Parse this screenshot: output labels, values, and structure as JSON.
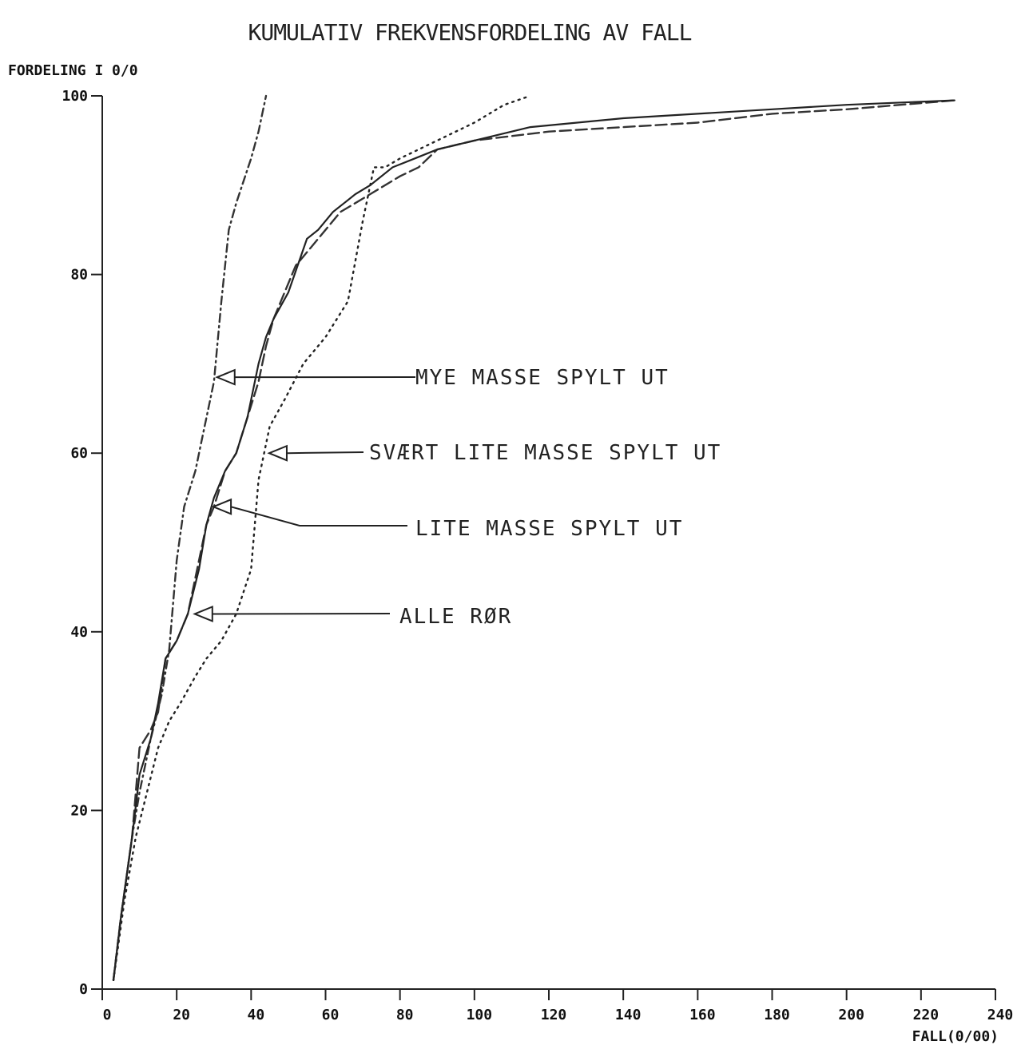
{
  "chart_data": {
    "type": "line",
    "title": "KUMULATIV FREKVENSFORDELING AV FALL",
    "ylabel": "FORDELING I 0/0",
    "xlabel": "FALL(0/00)",
    "xlim": [
      0,
      240
    ],
    "ylim": [
      0,
      100
    ],
    "xticks": [
      0,
      20,
      40,
      60,
      80,
      100,
      120,
      140,
      160,
      180,
      200,
      220,
      240
    ],
    "yticks": [
      0,
      20,
      40,
      60,
      80,
      100
    ],
    "grid": false,
    "series": [
      {
        "style": "dashdot",
        "color": "#333333",
        "x": [
          3,
          5,
          8,
          10,
          13,
          16,
          18,
          20,
          22,
          25,
          27,
          30,
          32,
          34,
          36,
          40,
          42,
          44
        ],
        "y": [
          1,
          8,
          17,
          22,
          28,
          33,
          38,
          48,
          54,
          58,
          62,
          68,
          77,
          85,
          88,
          93,
          96,
          100
        ]
      },
      {
        "style": "dashed",
        "color": "#333333",
        "x": [
          3,
          5,
          8,
          10,
          13,
          15,
          17,
          20,
          23,
          26,
          28,
          30,
          33,
          36,
          39,
          42,
          44,
          46,
          48,
          52,
          56,
          60,
          64,
          68,
          72,
          80,
          85,
          90,
          100,
          120,
          140,
          160,
          180,
          200,
          229
        ],
        "y": [
          1,
          8,
          17,
          27,
          29,
          31,
          37,
          39,
          42,
          48,
          52,
          54,
          58,
          60,
          64,
          68,
          72,
          75,
          77,
          81,
          83,
          85,
          87,
          88,
          89,
          91,
          92,
          94,
          95,
          96,
          96.5,
          97,
          98,
          98.5,
          99.5
        ]
      },
      {
        "style": "solid",
        "color": "#222222",
        "x": [
          3,
          5,
          8,
          10,
          13,
          15,
          17,
          20,
          23,
          26,
          28,
          30,
          33,
          36,
          39,
          42,
          44,
          46,
          50,
          55,
          58,
          62,
          65,
          68,
          72,
          78,
          84,
          90,
          100,
          115,
          140,
          160,
          180,
          200,
          229
        ],
        "y": [
          1,
          8,
          17,
          24,
          28,
          32,
          37,
          39,
          42,
          47,
          52,
          55,
          58,
          60,
          64,
          70,
          73,
          75,
          78,
          84,
          85,
          87,
          88,
          89,
          90,
          92,
          93,
          94,
          95,
          96.5,
          97.5,
          98,
          98.5,
          99,
          99.5
        ]
      },
      {
        "style": "dotted",
        "color": "#222222",
        "x": [
          3,
          6,
          9,
          12,
          15,
          18,
          21,
          25,
          28,
          32,
          36,
          40,
          42,
          45,
          49,
          54,
          60,
          66,
          70,
          73,
          76,
          80,
          90,
          100,
          108,
          115
        ],
        "y": [
          1,
          10,
          17,
          22,
          27,
          30,
          32,
          35,
          37,
          39,
          42,
          47,
          57,
          63,
          66,
          70,
          73,
          77,
          86,
          92,
          92,
          93,
          95,
          97,
          99,
          100
        ]
      }
    ],
    "annotations": [
      {
        "text": "MYE MASSE SPYLT UT",
        "target_x": 30,
        "target_y": 68.5
      },
      {
        "text": "SVÆRT LITE MASSE SPYLT UT",
        "target_x": 44,
        "target_y": 60
      },
      {
        "text": "LITE MASSE SPYLT UT",
        "target_x": 29,
        "target_y": 54
      },
      {
        "text": "ALLE RØR",
        "target_x": 24,
        "target_y": 42
      }
    ]
  }
}
